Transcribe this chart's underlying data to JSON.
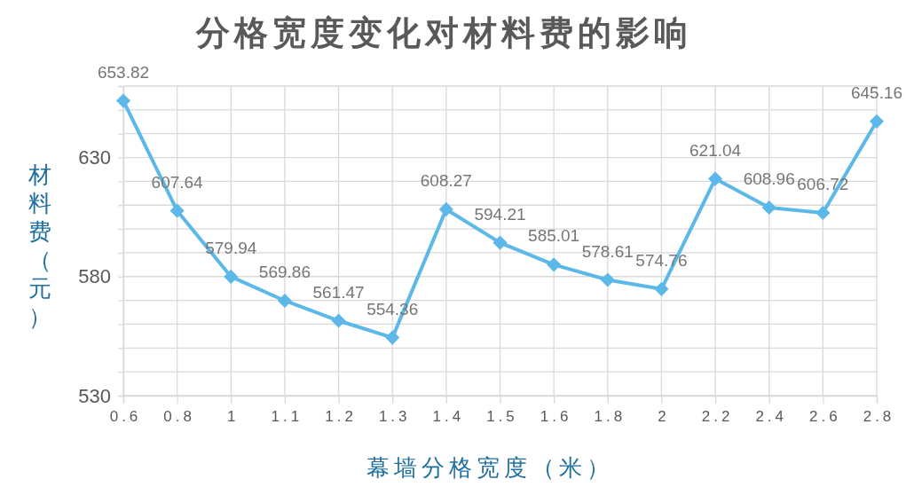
{
  "chart_data": {
    "type": "line",
    "title": "分格宽度变化对材料费的影响",
    "xlabel": "幕墙分格宽度（米）",
    "ylabel": "材料费（元）",
    "categories": [
      "0.6",
      "0.8",
      "1",
      "1.1",
      "1.2",
      "1.3",
      "1.4",
      "1.5",
      "1.6",
      "1.8",
      "2",
      "2.2",
      "2.4",
      "2.6",
      "2.8"
    ],
    "series": [
      {
        "color": "#5cb8e8",
        "values": [
          653.82,
          607.64,
          579.94,
          569.86,
          561.47,
          554.36,
          608.27,
          594.21,
          585.01,
          578.61,
          574.76,
          621.04,
          608.96,
          606.72,
          645.16
        ]
      }
    ],
    "ylim": [
      530,
      660
    ],
    "yticks": [
      530,
      {
        "value": 540,
        "label": null
      },
      {
        "value": 550,
        "label": null
      },
      {
        "value": 560,
        "label": null
      },
      {
        "value": 570,
        "label": null
      },
      580,
      {
        "value": 590,
        "label": null
      },
      {
        "value": 600,
        "label": null
      },
      {
        "value": 610,
        "label": null
      },
      {
        "value": 620,
        "label": null
      },
      630,
      {
        "value": 640,
        "label": null
      },
      {
        "value": 650,
        "label": null
      },
      {
        "value": 660,
        "label": null
      }
    ],
    "grid": true,
    "marker": "diamond",
    "line_style": "solid",
    "data_labels": true
  }
}
